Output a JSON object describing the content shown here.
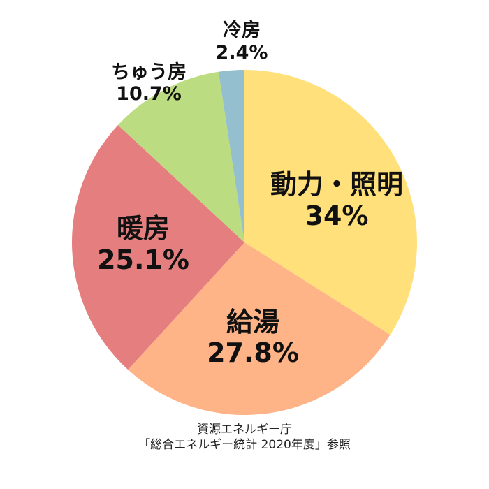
{
  "chart_data": {
    "type": "pie",
    "categories": [
      "動力・照明",
      "給湯",
      "暖房",
      "ちゅう房",
      "冷房"
    ],
    "values": [
      34,
      27.8,
      25.1,
      10.7,
      2.4
    ],
    "value_labels": [
      "34%",
      "27.8%",
      "25.1%",
      "10.7%",
      "2.4%"
    ],
    "colors": [
      "#FFE07A",
      "#FFB487",
      "#E57F7F",
      "#BCDC81",
      "#93BFCF"
    ],
    "start": "12 o'clock",
    "direction": "clockwise"
  },
  "source": {
    "line1": "資源エネルギー庁",
    "line2": "「総合エネルギー統計 2020年度」参照"
  }
}
